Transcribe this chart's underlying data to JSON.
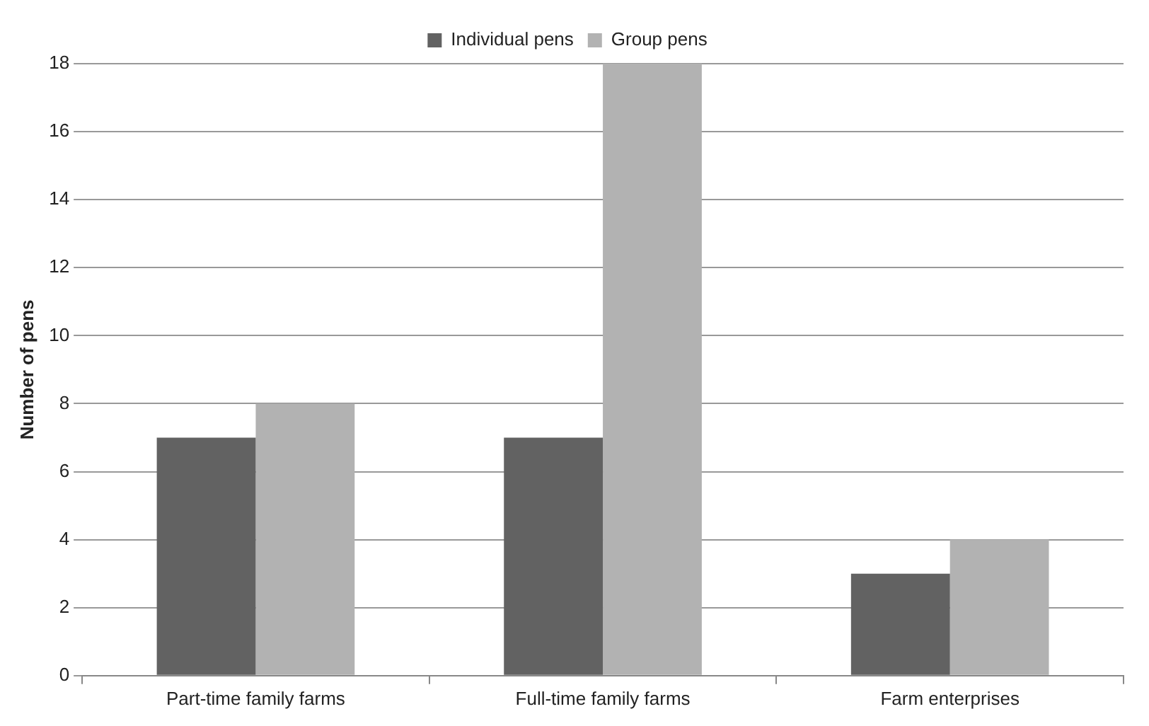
{
  "chart_data": {
    "type": "bar",
    "ylabel": "Number of pens",
    "categories": [
      "Part-time family farms",
      "Full-time family farms",
      "Farm enterprises"
    ],
    "series": [
      {
        "name": "Individual pens",
        "color": "#626262",
        "values": [
          7,
          7,
          3
        ]
      },
      {
        "name": "Group pens",
        "color": "#b2b2b2",
        "values": [
          8,
          18,
          4
        ]
      }
    ],
    "ylim": [
      0,
      18
    ],
    "yticks": [
      0,
      2,
      4,
      6,
      8,
      10,
      12,
      14,
      16,
      18
    ],
    "grid": "y",
    "legend": "top"
  }
}
